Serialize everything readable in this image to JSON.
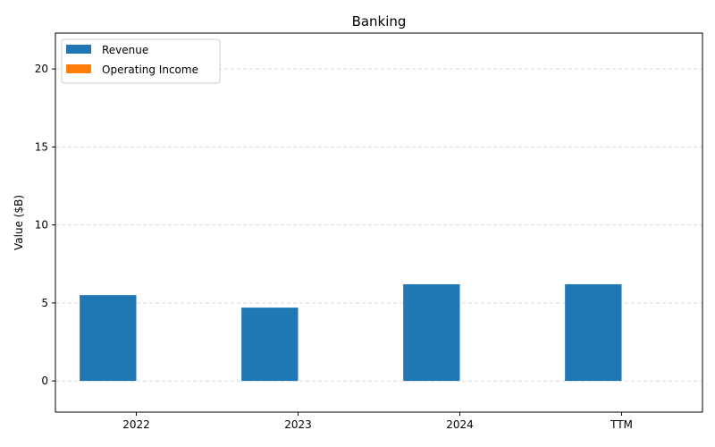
{
  "chart_data": {
    "type": "bar",
    "title": "Banking",
    "xlabel": "",
    "ylabel": "Value ($B)",
    "categories": [
      "2022",
      "2023",
      "2024",
      "TTM"
    ],
    "series": [
      {
        "name": "Revenue",
        "color": "#1f77b4",
        "values": [
          5.5,
          4.7,
          6.2,
          6.2
        ]
      },
      {
        "name": "Operating Income",
        "color": "#ff7f0e",
        "values": [
          0,
          0,
          0,
          0
        ]
      }
    ],
    "ylim": [
      -2,
      22.3
    ],
    "yticks": [
      0,
      5,
      10,
      15,
      20
    ],
    "grid": "y-dashed",
    "legend": "top-left"
  }
}
